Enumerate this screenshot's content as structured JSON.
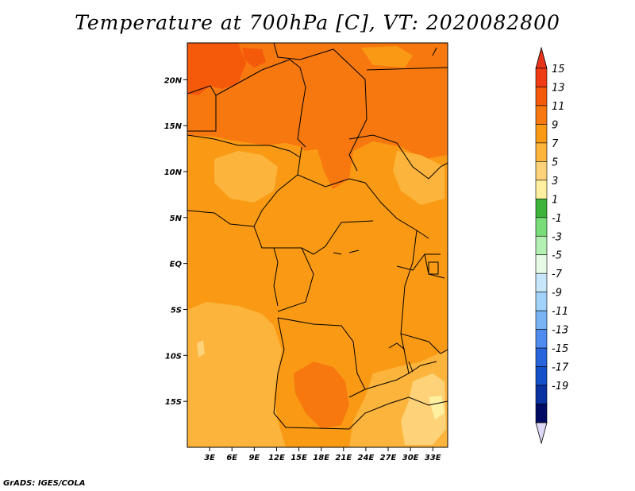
{
  "title": "Temperature at 700hPa [C], VT: 2020082800",
  "footer": "GrADS: IGES/COLA",
  "map": {
    "lon_range": [
      0,
      35
    ],
    "lat_range": [
      -20,
      24
    ],
    "lat_ticks": [
      {
        "value": 20,
        "label": "20N"
      },
      {
        "value": 15,
        "label": "15N"
      },
      {
        "value": 10,
        "label": "10N"
      },
      {
        "value": 5,
        "label": "5N"
      },
      {
        "value": 0,
        "label": "EQ"
      },
      {
        "value": -5,
        "label": "5S"
      },
      {
        "value": -10,
        "label": "10S"
      },
      {
        "value": -15,
        "label": "15S"
      }
    ],
    "lon_ticks": [
      {
        "value": 3,
        "label": "3E"
      },
      {
        "value": 6,
        "label": "6E"
      },
      {
        "value": 9,
        "label": "9E"
      },
      {
        "value": 12,
        "label": "12E"
      },
      {
        "value": 15,
        "label": "15E"
      },
      {
        "value": 18,
        "label": "18E"
      },
      {
        "value": 21,
        "label": "21E"
      },
      {
        "value": 24,
        "label": "24E"
      },
      {
        "value": 27,
        "label": "27E"
      },
      {
        "value": 30,
        "label": "30E"
      },
      {
        "value": 33,
        "label": "33E"
      }
    ]
  },
  "colorbar": {
    "labels": [
      "15",
      "13",
      "11",
      "9",
      "7",
      "5",
      "3",
      "1",
      "-1",
      "-3",
      "-5",
      "-7",
      "-9",
      "-11",
      "-13",
      "-15",
      "-17",
      "-19"
    ],
    "top_arrow_color": "#e6331a",
    "bottom_arrow_color": "#dcd8f5",
    "colors": [
      "#f03c14",
      "#f55a0a",
      "#f7780f",
      "#fa9a14",
      "#fcb43c",
      "#fdd278",
      "#fff0a0",
      "#3cb43c",
      "#78dc78",
      "#b4f0b4",
      "#e6fae6",
      "#c8e6fa",
      "#a0d2fa",
      "#78b4f5",
      "#508cf0",
      "#2864dc",
      "#1450c8",
      "#0a32a0",
      "#000c64"
    ]
  }
}
